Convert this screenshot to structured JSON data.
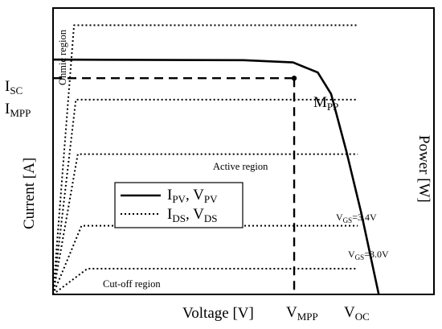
{
  "chart_data": {
    "type": "line",
    "xlabel": "Voltage [V]",
    "ylabel_left": "Current [A]",
    "ylabel_right": "Power [W]",
    "x_ticks": [
      {
        "main": "V",
        "sub": "MPP"
      },
      {
        "main": "V",
        "sub": "OC"
      }
    ],
    "y_ticks": [
      {
        "main": "I",
        "sub": "SC"
      },
      {
        "main": "I",
        "sub": "MPP"
      }
    ],
    "mpp_label": {
      "main": "M",
      "sub": "PP"
    },
    "region_labels": {
      "ohmic": "Ohmic region",
      "active": "Active region",
      "cutoff": "Cut-off region"
    },
    "vgs_labels": [
      {
        "main": "V",
        "sub": "GS",
        "value": "=3.4V"
      },
      {
        "main": "V",
        "sub": "GS",
        "value": "=3.0V"
      }
    ],
    "legend": [
      {
        "style": "solid",
        "parts": [
          {
            "main": "I",
            "sub": "PV"
          },
          {
            "main": ", V",
            "sub": "PV"
          }
        ]
      },
      {
        "style": "dotted",
        "parts": [
          {
            "main": "I",
            "sub": "DS"
          },
          {
            "main": ", V",
            "sub": "DS"
          }
        ]
      }
    ],
    "series": [
      {
        "style": "solid",
        "values": [
          [
            0,
            0.82
          ],
          [
            0.5,
            0.818
          ],
          [
            0.63,
            0.81
          ],
          [
            0.695,
            0.775
          ],
          [
            0.73,
            0.7
          ],
          [
            0.77,
            0.5
          ],
          [
            0.81,
            0.28
          ],
          [
            0.855,
            0.0
          ]
        ]
      },
      {
        "style": "dotted",
        "values": [
          [
            0,
            0
          ],
          [
            0.055,
            0.94
          ],
          [
            0.8,
            0.94
          ]
        ]
      },
      {
        "style": "dotted",
        "values": [
          [
            0,
            0
          ],
          [
            0.06,
            0.68
          ],
          [
            0.8,
            0.68
          ]
        ]
      },
      {
        "style": "dotted",
        "values": [
          [
            0,
            0
          ],
          [
            0.065,
            0.49
          ],
          [
            0.8,
            0.49
          ]
        ]
      },
      {
        "style": "dotted",
        "values": [
          [
            0,
            0
          ],
          [
            0.075,
            0.24
          ],
          [
            0.8,
            0.24
          ]
        ]
      },
      {
        "style": "dotted",
        "values": [
          [
            0,
            0
          ],
          [
            0.09,
            0.09
          ],
          [
            0.8,
            0.09
          ]
        ]
      }
    ],
    "mpp_point": [
      0.633,
      0.755
    ],
    "xlim": [
      0,
      1
    ],
    "ylim": [
      0,
      1
    ],
    "grid": false
  }
}
